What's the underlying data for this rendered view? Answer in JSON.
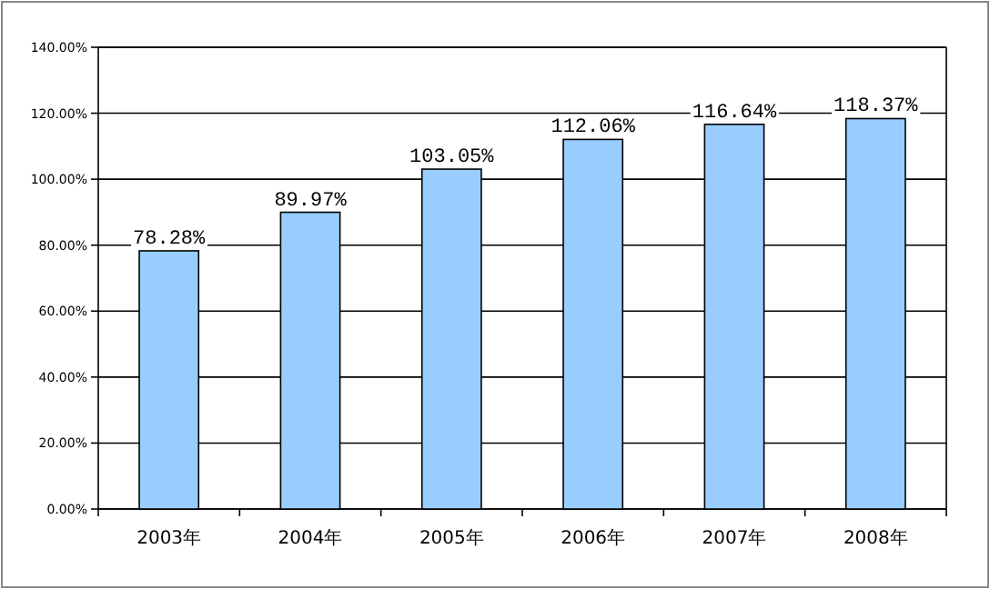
{
  "chart_data": {
    "type": "bar",
    "categories": [
      "2003年",
      "2004年",
      "2005年",
      "2006年",
      "2007年",
      "2008年"
    ],
    "values": [
      78.28,
      89.97,
      103.05,
      112.06,
      116.64,
      118.37
    ],
    "value_labels": [
      "78.28%",
      "89.97%",
      "103.05%",
      "112.06%",
      "116.64%",
      "118.37%"
    ],
    "color": "#99ccff",
    "ylim": [
      0,
      140
    ],
    "yticks": [
      {
        "value": 0,
        "label": "0.00%"
      },
      {
        "value": 20,
        "label": "20.00%"
      },
      {
        "value": 40,
        "label": "40.00%"
      },
      {
        "value": 60,
        "label": "60.00%"
      },
      {
        "value": 80,
        "label": "80.00%"
      },
      {
        "value": 100,
        "label": "100.00%"
      },
      {
        "value": 120,
        "label": "120.00%"
      },
      {
        "value": 140,
        "label": "140.00%"
      }
    ],
    "grid": "y"
  }
}
